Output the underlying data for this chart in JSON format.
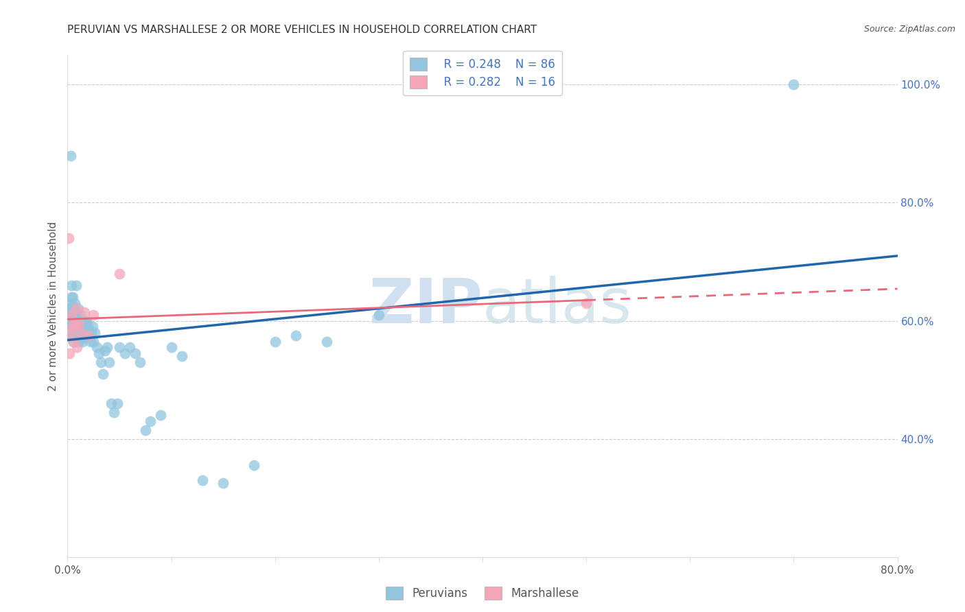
{
  "title": "PERUVIAN VS MARSHALLESE 2 OR MORE VEHICLES IN HOUSEHOLD CORRELATION CHART",
  "source": "Source: ZipAtlas.com",
  "ylabel": "2 or more Vehicles in Household",
  "watermark": "ZIPatlas",
  "xlim": [
    0.0,
    0.8
  ],
  "ylim": [
    0.2,
    1.05
  ],
  "xticks": [
    0.0,
    0.1,
    0.2,
    0.3,
    0.4,
    0.5,
    0.6,
    0.7,
    0.8
  ],
  "xticklabels": [
    "0.0%",
    "",
    "",
    "",
    "",
    "",
    "",
    "",
    "80.0%"
  ],
  "yticks": [
    0.2,
    0.4,
    0.6,
    0.8,
    1.0
  ],
  "right_yticklabels": [
    "",
    "40.0%",
    "60.0%",
    "80.0%",
    "100.0%"
  ],
  "peruvian_color": "#92c5de",
  "marshallese_color": "#f4a6b8",
  "line_peruvian_color": "#2166ac",
  "line_marshallese_color": "#e8687a",
  "legend_R_peruvian": "R = 0.248",
  "legend_N_peruvian": "N = 86",
  "legend_R_marshallese": "R = 0.282",
  "legend_N_marshallese": "N = 16",
  "peruvian_x": [
    0.001,
    0.001,
    0.002,
    0.002,
    0.002,
    0.003,
    0.003,
    0.003,
    0.003,
    0.004,
    0.004,
    0.004,
    0.004,
    0.005,
    0.005,
    0.005,
    0.005,
    0.005,
    0.006,
    0.006,
    0.006,
    0.006,
    0.007,
    0.007,
    0.007,
    0.007,
    0.008,
    0.008,
    0.008,
    0.009,
    0.009,
    0.009,
    0.01,
    0.01,
    0.01,
    0.01,
    0.011,
    0.011,
    0.012,
    0.012,
    0.012,
    0.013,
    0.013,
    0.014,
    0.014,
    0.015,
    0.015,
    0.016,
    0.017,
    0.018,
    0.019,
    0.02,
    0.021,
    0.022,
    0.023,
    0.024,
    0.025,
    0.026,
    0.028,
    0.03,
    0.032,
    0.034,
    0.036,
    0.038,
    0.04,
    0.042,
    0.045,
    0.048,
    0.05,
    0.055,
    0.06,
    0.065,
    0.07,
    0.075,
    0.08,
    0.09,
    0.1,
    0.11,
    0.13,
    0.15,
    0.18,
    0.2,
    0.22,
    0.25,
    0.3,
    0.7
  ],
  "peruvian_y": [
    0.61,
    0.62,
    0.595,
    0.62,
    0.63,
    0.575,
    0.6,
    0.62,
    0.88,
    0.59,
    0.615,
    0.64,
    0.66,
    0.575,
    0.595,
    0.61,
    0.625,
    0.64,
    0.565,
    0.59,
    0.605,
    0.62,
    0.575,
    0.595,
    0.61,
    0.63,
    0.575,
    0.595,
    0.66,
    0.57,
    0.59,
    0.61,
    0.565,
    0.585,
    0.6,
    0.62,
    0.575,
    0.595,
    0.57,
    0.59,
    0.61,
    0.575,
    0.595,
    0.565,
    0.585,
    0.57,
    0.59,
    0.6,
    0.58,
    0.6,
    0.595,
    0.575,
    0.585,
    0.565,
    0.58,
    0.59,
    0.565,
    0.58,
    0.555,
    0.545,
    0.53,
    0.51,
    0.55,
    0.555,
    0.53,
    0.46,
    0.445,
    0.46,
    0.555,
    0.545,
    0.555,
    0.545,
    0.53,
    0.415,
    0.43,
    0.44,
    0.555,
    0.54,
    0.33,
    0.325,
    0.355,
    0.565,
    0.575,
    0.565,
    0.61,
    1.0
  ],
  "marshallese_x": [
    0.001,
    0.002,
    0.003,
    0.004,
    0.005,
    0.006,
    0.007,
    0.008,
    0.009,
    0.011,
    0.013,
    0.016,
    0.02,
    0.025,
    0.05,
    0.5
  ],
  "marshallese_y": [
    0.74,
    0.545,
    0.58,
    0.61,
    0.59,
    0.565,
    0.595,
    0.62,
    0.555,
    0.595,
    0.58,
    0.615,
    0.575,
    0.61,
    0.68,
    0.63
  ],
  "background_color": "#ffffff",
  "grid_color": "#cccccc",
  "title_color": "#333333",
  "right_axis_color": "#4472c4",
  "watermark_color": "#d0e0f0",
  "peruvian_line_start_x": 0.0,
  "peruvian_line_end_x": 0.8,
  "marshallese_line_solid_end": 0.5
}
